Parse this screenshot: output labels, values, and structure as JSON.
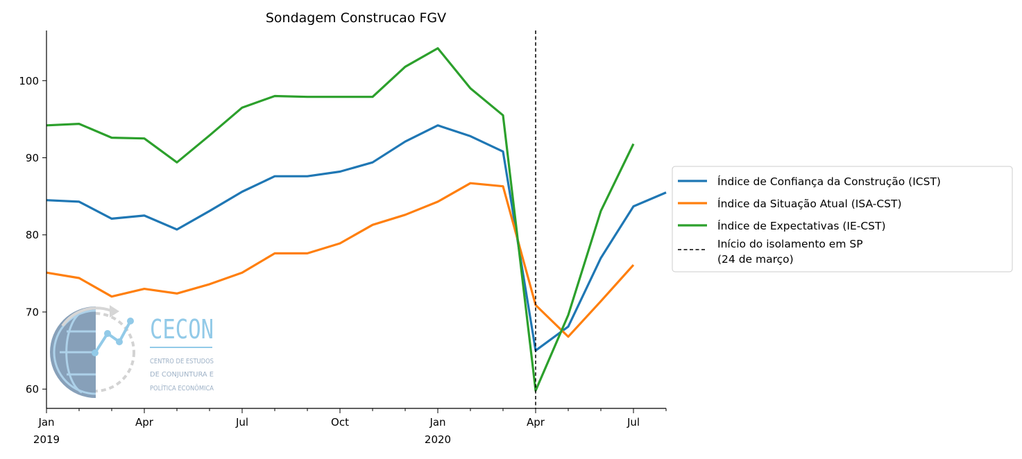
{
  "chart_data": {
    "type": "line",
    "title": "Sondagem Construcao FGV",
    "xlabel": "",
    "ylabel": "",
    "x": [
      "2019-01",
      "2019-02",
      "2019-03",
      "2019-04",
      "2019-05",
      "2019-06",
      "2019-07",
      "2019-08",
      "2019-09",
      "2019-10",
      "2019-11",
      "2019-12",
      "2020-01",
      "2020-02",
      "2020-03",
      "2020-04",
      "2020-05",
      "2020-06",
      "2020-07"
    ],
    "xlim": [
      "2019-01",
      "2020-08"
    ],
    "ylim": [
      57.5,
      106.5
    ],
    "yticks": [
      60,
      70,
      80,
      90,
      100
    ],
    "x_ticks": [
      {
        "x": "2019-01",
        "line1": "Jan",
        "line2": "2019"
      },
      {
        "x": "2019-04",
        "line1": "Apr",
        "line2": ""
      },
      {
        "x": "2019-07",
        "line1": "Jul",
        "line2": ""
      },
      {
        "x": "2019-10",
        "line1": "Oct",
        "line2": ""
      },
      {
        "x": "2020-01",
        "line1": "Jan",
        "line2": "2020"
      },
      {
        "x": "2020-04",
        "line1": "Apr",
        "line2": ""
      },
      {
        "x": "2020-07",
        "line1": "Jul",
        "line2": ""
      }
    ],
    "minor_ticks": [
      "2019-02",
      "2019-03",
      "2019-05",
      "2019-06",
      "2019-08",
      "2019-09",
      "2019-11",
      "2019-12",
      "2020-02",
      "2020-03",
      "2020-05",
      "2020-06",
      "2020-08"
    ],
    "series": [
      {
        "name": "Índice de Confiança da Construção (ICST)",
        "color": "#1f77b4",
        "values": [
          84.5,
          84.3,
          82.1,
          82.5,
          80.7,
          83.1,
          85.6,
          87.6,
          87.6,
          88.2,
          89.4,
          92.1,
          94.2,
          92.8,
          90.8,
          65.0,
          68.1,
          77.0,
          83.7,
          85.5
        ],
        "x": [
          "2019-01",
          "2019-02",
          "2019-03",
          "2019-04",
          "2019-05",
          "2019-06",
          "2019-07",
          "2019-08",
          "2019-09",
          "2019-10",
          "2019-11",
          "2019-12",
          "2020-01",
          "2020-02",
          "2020-03",
          "2020-04",
          "2020-05",
          "2020-06",
          "2020-07",
          "2020-08"
        ]
      },
      {
        "name": "Índice da Situação Atual (ISA-CST)",
        "color": "#ff7f0e",
        "values": [
          75.1,
          74.4,
          72.0,
          73.0,
          72.4,
          73.6,
          75.1,
          77.6,
          77.6,
          78.9,
          81.3,
          82.6,
          84.3,
          86.7,
          86.3,
          70.9,
          66.8,
          71.4,
          76.1
        ],
        "x": [
          "2019-01",
          "2019-02",
          "2019-03",
          "2019-04",
          "2019-05",
          "2019-06",
          "2019-07",
          "2019-08",
          "2019-09",
          "2019-10",
          "2019-11",
          "2019-12",
          "2020-01",
          "2020-02",
          "2020-03",
          "2020-04",
          "2020-05",
          "2020-06",
          "2020-07"
        ]
      },
      {
        "name": "Índice de Expectativas (IE-CST)",
        "color": "#2ca02c",
        "values": [
          94.2,
          94.4,
          92.6,
          92.5,
          89.4,
          92.9,
          96.5,
          98.0,
          97.9,
          97.9,
          97.9,
          101.8,
          104.2,
          99.0,
          95.5,
          59.8,
          69.6,
          83.1,
          91.8
        ],
        "x": [
          "2019-01",
          "2019-02",
          "2019-03",
          "2019-04",
          "2019-05",
          "2019-06",
          "2019-07",
          "2019-08",
          "2019-09",
          "2019-10",
          "2019-11",
          "2019-12",
          "2020-01",
          "2020-02",
          "2020-03",
          "2020-04",
          "2020-05",
          "2020-06",
          "2020-07"
        ]
      }
    ],
    "vline": {
      "x": "2020-04",
      "label_line1": "Início do isolamento em SP",
      "label_line2": "(24 de março)",
      "color": "#000000",
      "style": "dashed"
    },
    "legend_placement": "outside-right",
    "grid": false
  },
  "logo": {
    "name": "CECON",
    "line1": "CENTRO DE ESTUDOS",
    "line2": "DE CONJUNTURA E",
    "line3": "POLÍTICA ECONÔMICA"
  }
}
